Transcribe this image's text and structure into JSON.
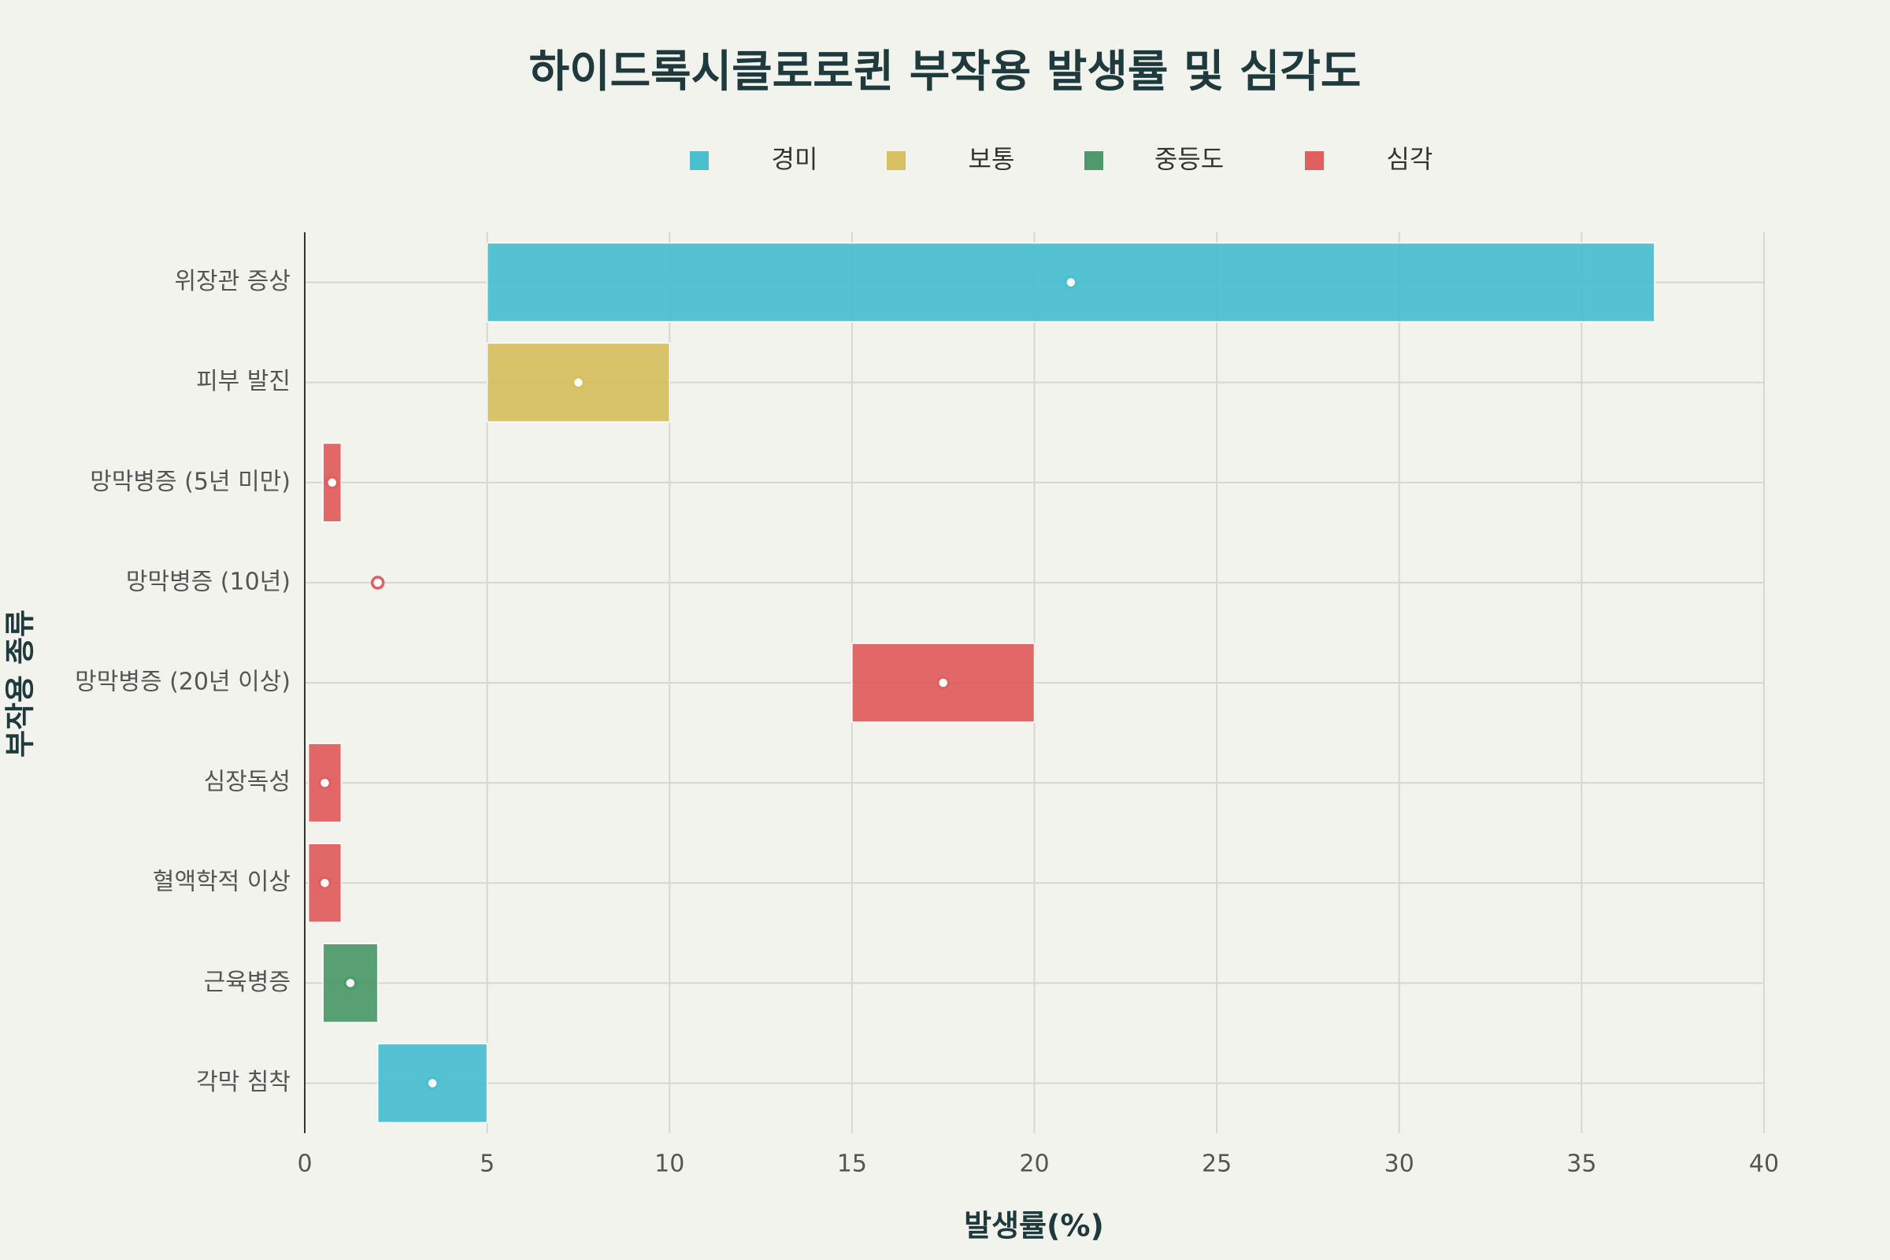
{
  "chart_data": {
    "type": "floating-bar",
    "title": "하이드록시클로로퀸 부작용 발생률 및 심각도",
    "x_label": "발생률(%)",
    "y_label": "부작용 종류",
    "categories": [
      "위장관 증상",
      "피부 발진",
      "망막병증 (5년 미만)",
      "망막병증 (10년)",
      "망막병증 (20년 이상)",
      "심장독성",
      "혈액학적 이상",
      "근육병증",
      "각막 침착"
    ],
    "series": [
      {
        "name": "경미",
        "color": "#4bbfd0",
        "low": [
          5,
          null,
          null,
          null,
          null,
          null,
          null,
          null,
          2
        ],
        "high": [
          37,
          null,
          null,
          null,
          null,
          null,
          null,
          null,
          5
        ],
        "mid": [
          21,
          null,
          null,
          null,
          null,
          null,
          null,
          null,
          3.5
        ]
      },
      {
        "name": "보통",
        "color": "#d6c062",
        "low": [
          null,
          5,
          null,
          null,
          null,
          null,
          null,
          null,
          null
        ],
        "high": [
          null,
          10,
          null,
          null,
          null,
          null,
          null,
          null,
          null
        ],
        "mid": [
          null,
          7.5,
          null,
          null,
          null,
          null,
          null,
          null,
          null
        ]
      },
      {
        "name": "중등도",
        "color": "#4f9a6c",
        "low": [
          null,
          null,
          null,
          null,
          null,
          null,
          null,
          0.5,
          null
        ],
        "high": [
          null,
          null,
          null,
          null,
          null,
          null,
          null,
          2,
          null
        ],
        "mid": [
          null,
          null,
          null,
          null,
          null,
          null,
          null,
          1.25,
          null
        ]
      },
      {
        "name": "심각",
        "color": "#e06060",
        "low": [
          null,
          null,
          0.5,
          2,
          15,
          0.1,
          0.1,
          null,
          null
        ],
        "high": [
          null,
          null,
          1,
          2,
          20,
          1,
          1,
          null,
          null
        ],
        "mid": [
          null,
          null,
          0.75,
          2,
          17.5,
          0.55,
          0.55,
          null,
          null
        ]
      }
    ],
    "xlim": [
      0,
      40
    ],
    "xticks": [
      0,
      5,
      10,
      15,
      20,
      25,
      30,
      35,
      40
    ],
    "grid": true
  }
}
